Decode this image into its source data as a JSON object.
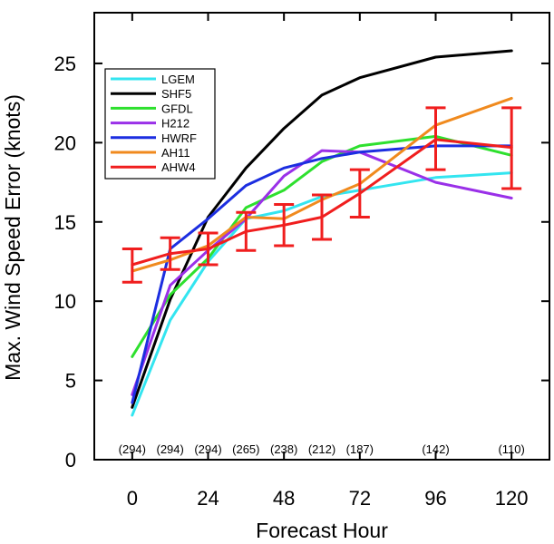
{
  "chart_data": {
    "type": "line",
    "title": "",
    "xlabel": "Forecast Hour",
    "ylabel": "Max. Wind Speed Error (knots)",
    "xlim": [
      -12,
      132
    ],
    "ylim": [
      0,
      28.2
    ],
    "xticks": [
      0,
      24,
      48,
      72,
      96,
      120
    ],
    "yticks": [
      0,
      5,
      10,
      15,
      20,
      25
    ],
    "grid": false,
    "legend_position": "top-left",
    "sample_sizes": [
      {
        "x": 0,
        "label": "(294)"
      },
      {
        "x": 12,
        "label": "(294)"
      },
      {
        "x": 24,
        "label": "(294)"
      },
      {
        "x": 36,
        "label": "(265)"
      },
      {
        "x": 48,
        "label": "(238)"
      },
      {
        "x": 60,
        "label": "(212)"
      },
      {
        "x": 72,
        "label": "(187)"
      },
      {
        "x": 96,
        "label": "(142)"
      },
      {
        "x": 120,
        "label": "(110)"
      }
    ],
    "x": [
      0,
      12,
      24,
      36,
      48,
      60,
      72,
      96,
      120
    ],
    "series": [
      {
        "name": "LGEM",
        "color": "#33e5f0",
        "values": [
          2.8,
          8.8,
          12.5,
          15.2,
          15.7,
          16.6,
          17.0,
          17.8,
          18.1
        ]
      },
      {
        "name": "SHF5",
        "color": "#000000",
        "values": [
          3.3,
          10.1,
          15.3,
          18.4,
          20.9,
          23.0,
          24.1,
          25.4,
          25.8
        ]
      },
      {
        "name": "GFDL",
        "color": "#2ee02e",
        "values": [
          6.5,
          10.4,
          12.7,
          15.9,
          17.0,
          18.8,
          19.8,
          20.4,
          19.2
        ]
      },
      {
        "name": "H212",
        "color": "#9a30e8",
        "values": [
          4.1,
          11.0,
          13.2,
          15.2,
          17.9,
          19.5,
          19.4,
          17.5,
          16.5
        ]
      },
      {
        "name": "HWRF",
        "color": "#1c2ee0",
        "values": [
          3.6,
          13.3,
          15.2,
          17.3,
          18.4,
          19.0,
          19.4,
          19.8,
          19.8
        ]
      },
      {
        "name": "AH11",
        "color": "#f08a1e",
        "values": [
          11.9,
          12.6,
          13.5,
          15.3,
          15.2,
          16.4,
          17.4,
          21.1,
          22.8
        ]
      },
      {
        "name": "AHW4",
        "color": "#f01e1e",
        "values": [
          12.3,
          13.0,
          13.3,
          14.4,
          14.8,
          15.3,
          16.8,
          20.2,
          19.7
        ]
      }
    ],
    "error_bars": {
      "series": "AHW4",
      "color": "#f01e1e",
      "points": [
        {
          "x": 0,
          "low": 11.2,
          "high": 13.3
        },
        {
          "x": 12,
          "low": 12.0,
          "high": 14.0
        },
        {
          "x": 24,
          "low": 12.3,
          "high": 14.3
        },
        {
          "x": 36,
          "low": 13.2,
          "high": 15.6
        },
        {
          "x": 48,
          "low": 13.5,
          "high": 16.1
        },
        {
          "x": 60,
          "low": 13.9,
          "high": 16.7
        },
        {
          "x": 72,
          "low": 15.3,
          "high": 18.3
        },
        {
          "x": 96,
          "low": 18.3,
          "high": 22.2
        },
        {
          "x": 120,
          "low": 17.1,
          "high": 22.2
        }
      ]
    }
  }
}
